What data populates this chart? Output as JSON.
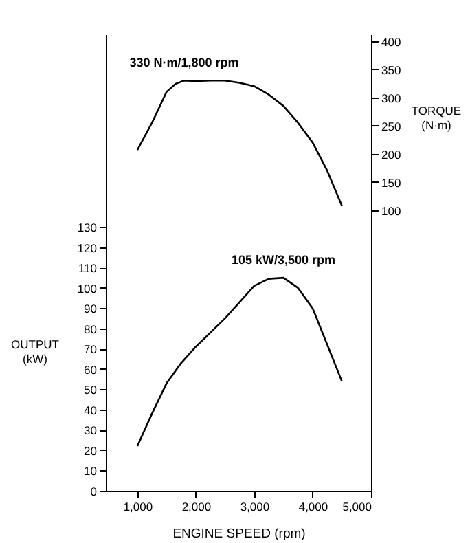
{
  "chart_data": {
    "type": "line",
    "xlabel": "ENGINE SPEED (rpm)",
    "ylabel": "OUTPUT (kW)",
    "y2label": "TORQUE (N·m)",
    "xlim": [
      460,
      5000
    ],
    "xticks": [
      {
        "value": 1000,
        "label": "1,000"
      },
      {
        "value": 2000,
        "label": "2,000"
      },
      {
        "value": 3000,
        "label": "3,000"
      },
      {
        "value": 4000,
        "label": "4,000"
      },
      {
        "value": 5000,
        "label": "5,000"
      }
    ],
    "ylim": [
      0,
      225
    ],
    "yticks": [
      0,
      10,
      20,
      30,
      40,
      50,
      60,
      70,
      80,
      90,
      100,
      110,
      120,
      130
    ],
    "y2lim": [
      -398,
      412
    ],
    "y2ticks": [
      100,
      150,
      200,
      250,
      300,
      350,
      400
    ],
    "grid": false,
    "marker": "none",
    "line_style": "solid",
    "series": [
      {
        "axis": "y",
        "color": "#000000",
        "x": [
          1000,
          1250,
          1500,
          1750,
          2000,
          2250,
          2500,
          2750,
          3000,
          3250,
          3500,
          3750,
          4000,
          4250,
          4500
        ],
        "values": [
          22,
          38,
          53,
          63,
          71,
          78,
          85,
          93,
          101,
          104.5,
          105,
          100,
          90,
          72,
          54
        ]
      },
      {
        "axis": "y2",
        "color": "#000000",
        "x": [
          1000,
          1250,
          1500,
          1650,
          1800,
          2000,
          2250,
          2500,
          2750,
          3000,
          3250,
          3500,
          3750,
          4000,
          4250,
          4500
        ],
        "values": [
          207,
          255,
          310,
          324,
          330,
          329,
          330,
          330,
          326,
          320,
          305,
          285,
          255,
          220,
          170,
          108
        ]
      }
    ],
    "annotations": [
      {
        "text": "105 kW/3,500 rpm",
        "x": 3500,
        "y": 105
      },
      "330 N·m/1,800 rpm"
    ]
  }
}
